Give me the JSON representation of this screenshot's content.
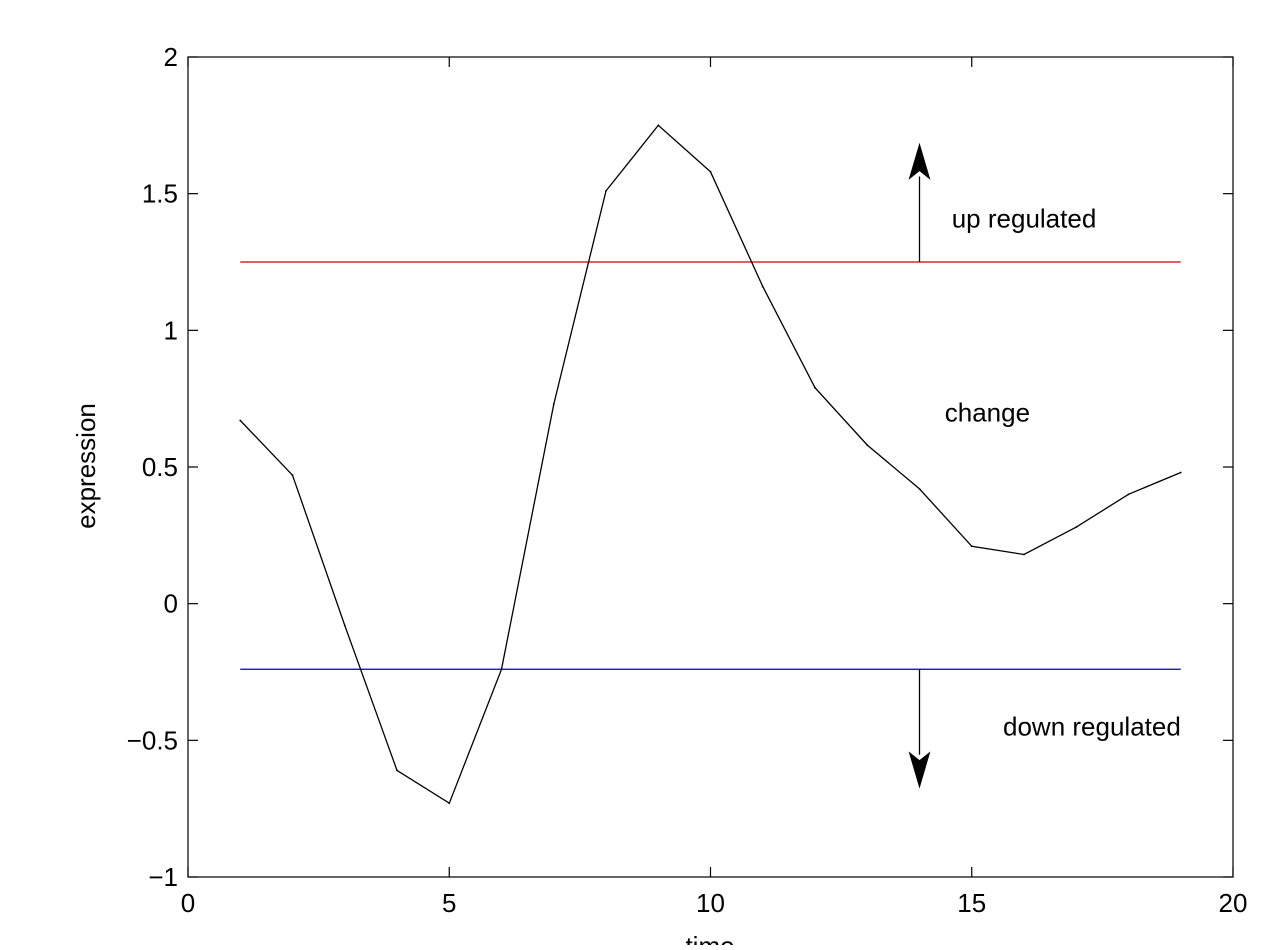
{
  "chart_data": {
    "type": "line",
    "xlabel": "time",
    "ylabel": "expression",
    "xlim": [
      0,
      20
    ],
    "ylim": [
      -1,
      2
    ],
    "xticks": [
      0,
      5,
      10,
      15,
      20
    ],
    "yticks": [
      -1,
      -0.5,
      0,
      0.5,
      1,
      1.5,
      2
    ],
    "xtick_labels": [
      "0",
      "5",
      "10",
      "15",
      "20"
    ],
    "ytick_labels": [
      "−1",
      "−0.5",
      "0",
      "0.5",
      "1",
      "1.5",
      "2"
    ],
    "grid": false,
    "series": [
      {
        "color": "#000000",
        "x": [
          1,
          2,
          3,
          4,
          5,
          6,
          7,
          8,
          9,
          10,
          11,
          12,
          13,
          14,
          15,
          16,
          17,
          18,
          19
        ],
        "values": [
          0.67,
          0.47,
          -0.08,
          -0.61,
          -0.73,
          -0.24,
          0.73,
          1.51,
          1.75,
          1.58,
          1.16,
          0.79,
          0.58,
          0.42,
          0.21,
          0.18,
          0.28,
          0.4,
          0.48
        ]
      }
    ],
    "thresholds": [
      {
        "y": 1.25,
        "x_range": [
          1,
          19
        ],
        "color": "#cc0000"
      },
      {
        "y": -0.24,
        "x_range": [
          1,
          19
        ],
        "color": "#00009b"
      }
    ],
    "annotations": [
      {
        "text": "up regulated",
        "x": 16,
        "y": 1.41
      },
      {
        "text": "change",
        "x": 15.3,
        "y": 0.7
      },
      {
        "text": "down regulated",
        "x": 17.3,
        "y": -0.45
      }
    ],
    "arrows": [
      {
        "x": 14,
        "from": 1.25,
        "to": 1.68
      },
      {
        "x": 14,
        "from": -0.24,
        "to": -0.67
      }
    ]
  }
}
